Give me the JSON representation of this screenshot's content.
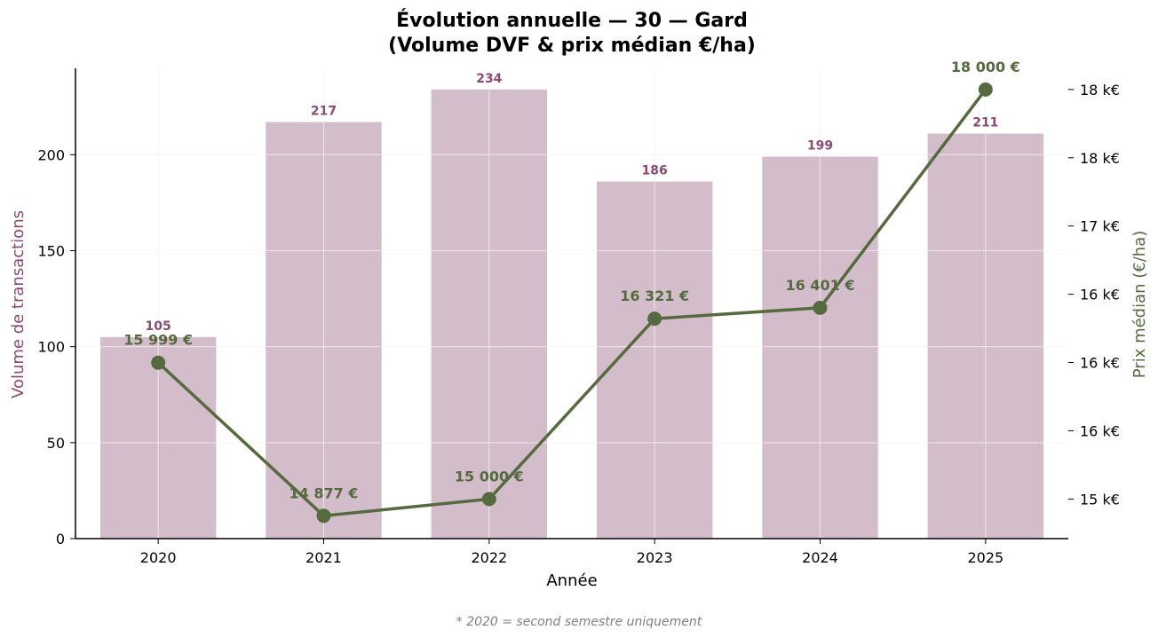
{
  "chart_data": {
    "type": "bar+line",
    "title_line1": "Évolution annuelle — 30 — Gard",
    "title_line2": "(Volume DVF & prix médian €/ha)",
    "xlabel": "Année",
    "ylabel_left": "Volume de transactions",
    "ylabel_right": "Prix médian (€/ha)",
    "categories": [
      "2020",
      "2021",
      "2022",
      "2023",
      "2024",
      "2025"
    ],
    "series": [
      {
        "kind": "bar",
        "axis": "left",
        "values": [
          105,
          217,
          234,
          186,
          199,
          211
        ],
        "labels": [
          "105",
          "217",
          "234",
          "186",
          "199",
          "211"
        ]
      },
      {
        "kind": "line",
        "axis": "right",
        "values": [
          15999,
          14877,
          15000,
          16321,
          16401,
          18000
        ],
        "labels": [
          "15 999 €",
          "14 877 €",
          "15 000 €",
          "16 321 €",
          "16 401 €",
          "18 000 €"
        ]
      }
    ],
    "ylim_left": [
      0,
      245
    ],
    "yticks_left": [
      0,
      50,
      100,
      150,
      200
    ],
    "yticks_left_labels": [
      "0",
      "50",
      "100",
      "150",
      "200"
    ],
    "ylim_right": [
      14710,
      18155
    ],
    "yticks_right": [
      15000,
      15500,
      16000,
      16500,
      17000,
      17500,
      18000
    ],
    "yticks_right_labels": [
      "15 k€",
      "16 k€",
      "16 k€",
      "16 k€",
      "17 k€",
      "18 k€",
      "18 k€"
    ],
    "grid": true,
    "colors": {
      "bar": "#d4bdcb",
      "bar_label": "#8b4a72",
      "line": "#556b3f",
      "left_axis_label": "#8b4a72",
      "right_axis_label": "#556b3f",
      "grid": "#ececec"
    },
    "footnote": "* 2020 = second semestre uniquement"
  }
}
